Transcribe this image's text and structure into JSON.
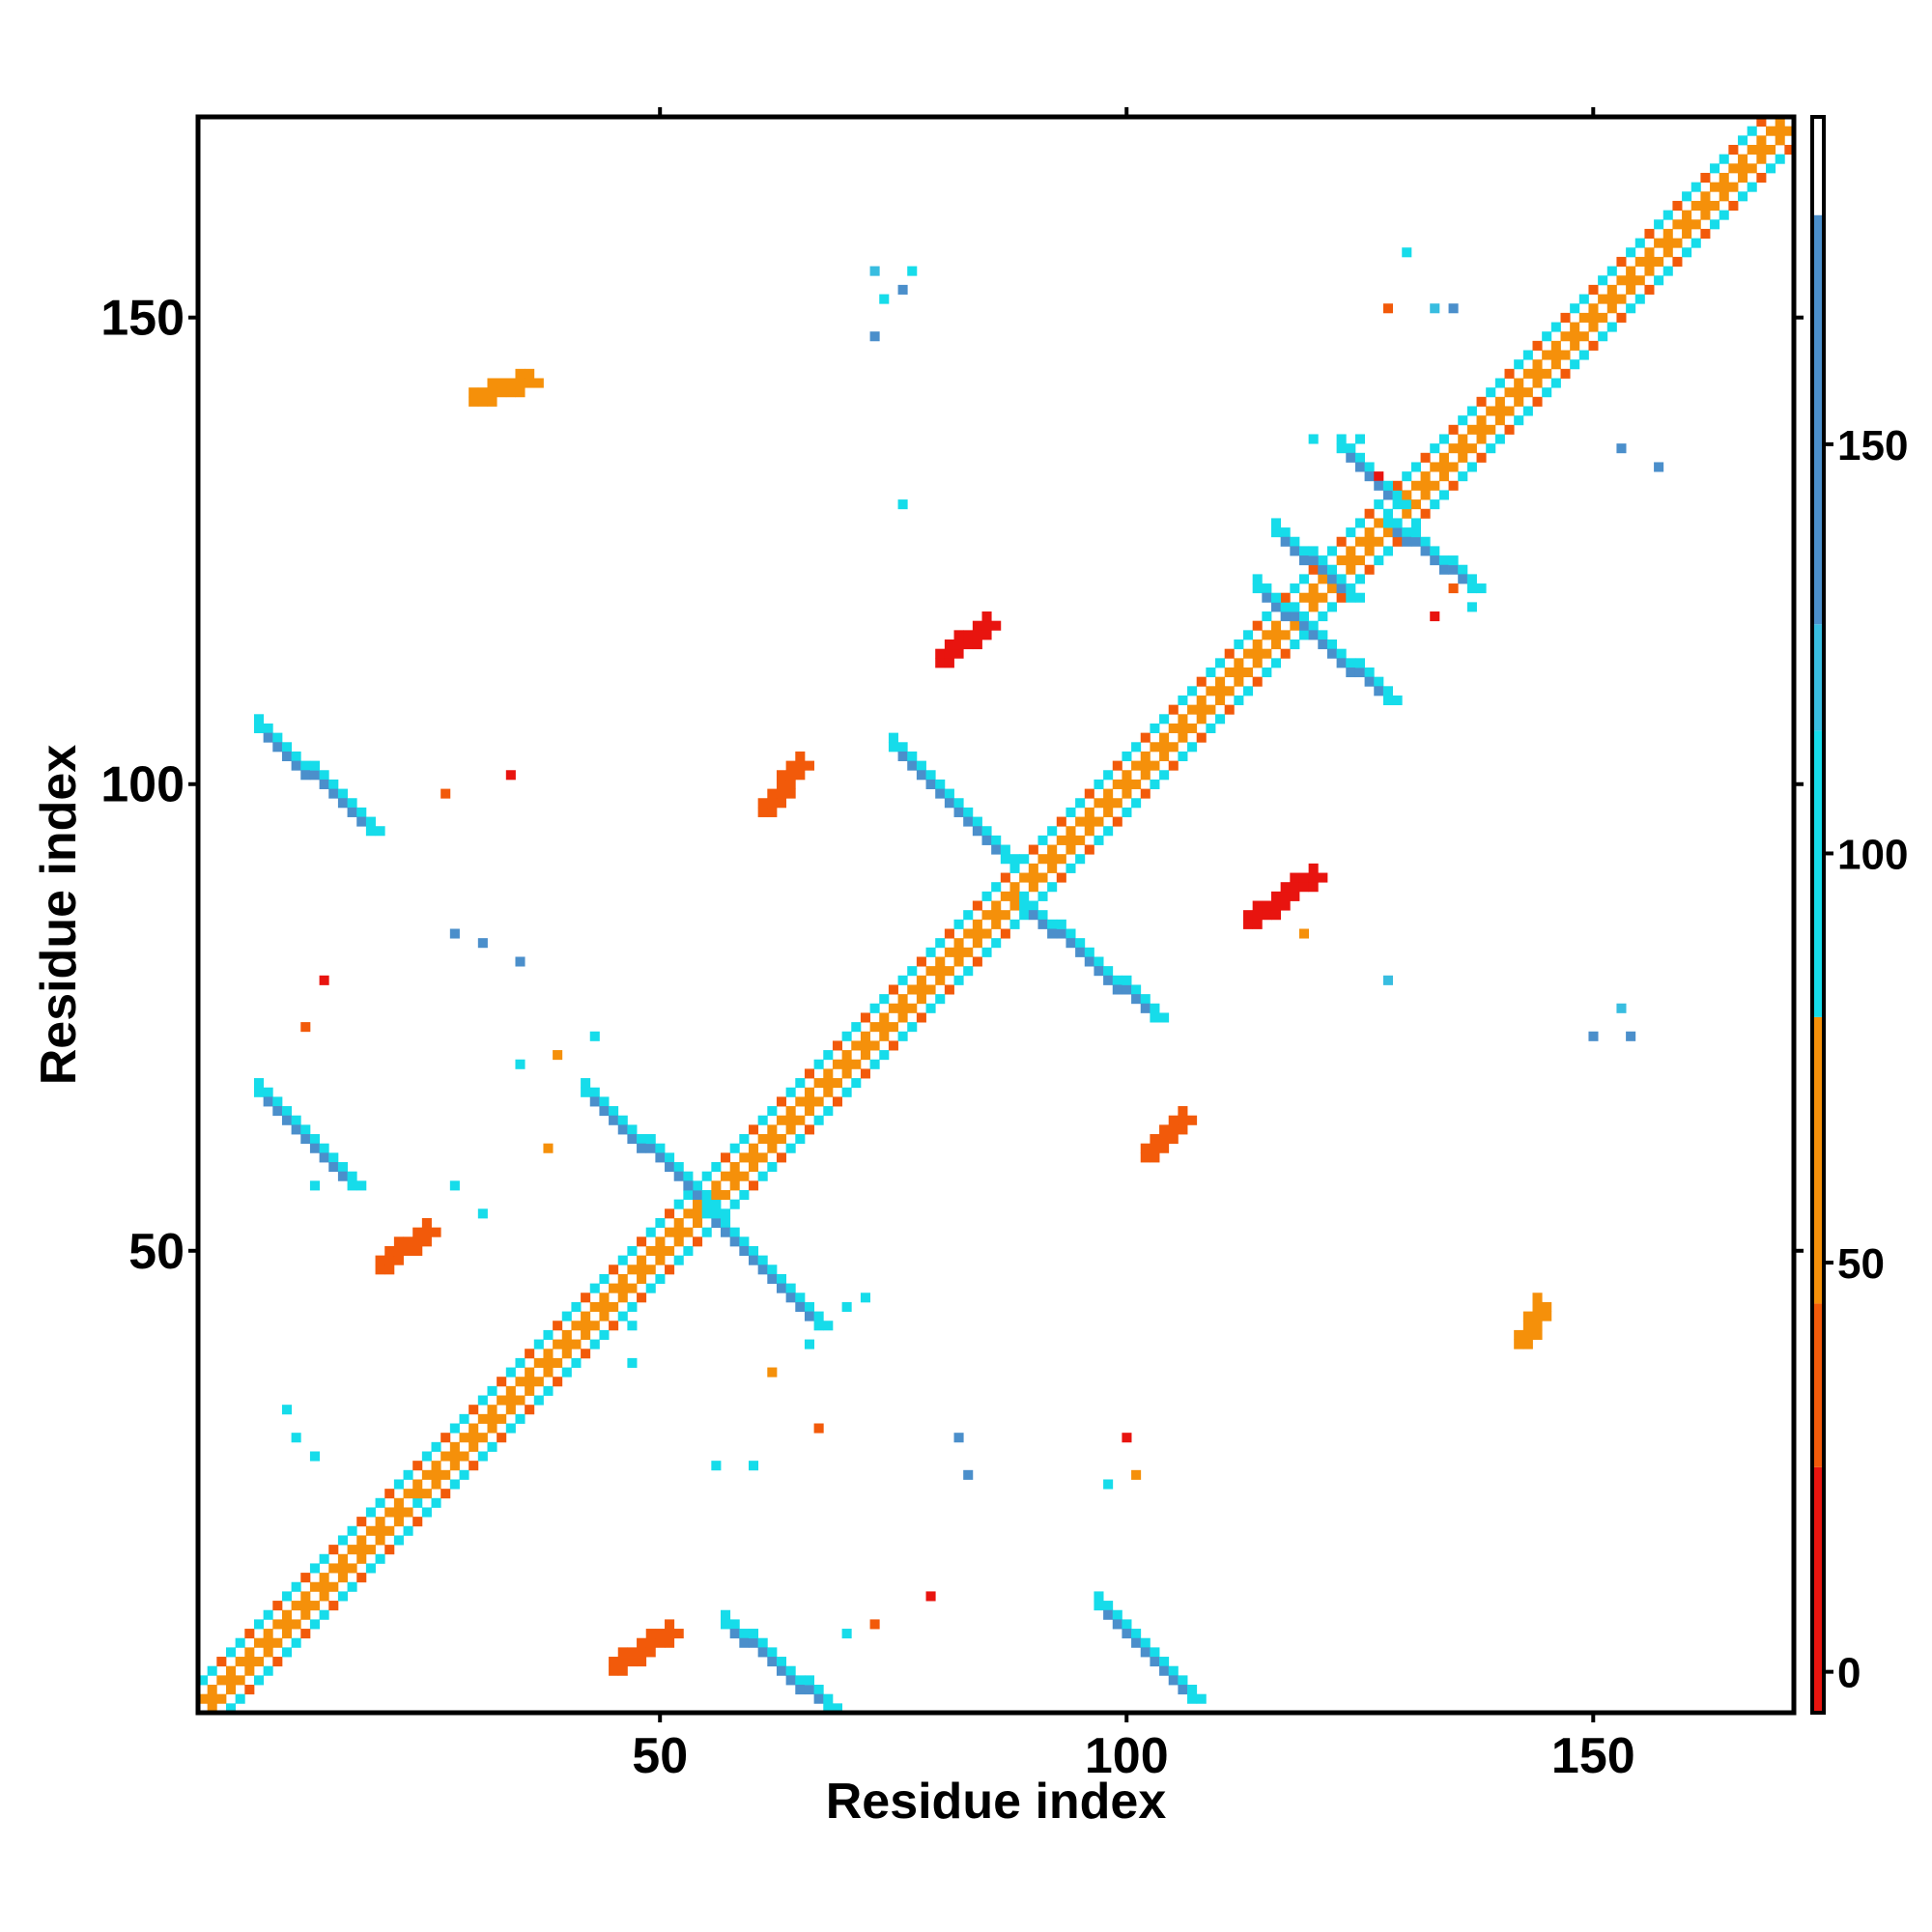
{
  "chart_data": {
    "type": "heatmap",
    "title": "",
    "xlabel": "Residue index",
    "ylabel": "Residue index",
    "xlim": [
      1,
      171
    ],
    "ylim": [
      1,
      171
    ],
    "x_ticks": [
      50,
      100,
      150
    ],
    "y_ticks": [
      50,
      100,
      150
    ],
    "colorbar": {
      "ticks": [
        0,
        50,
        100,
        150
      ],
      "range": [
        -5,
        190
      ],
      "bands": [
        {
          "from": -5,
          "to": 25,
          "color": "#e8140f"
        },
        {
          "from": 25,
          "to": 45,
          "color": "#f25a0a"
        },
        {
          "from": 45,
          "to": 80,
          "color": "#f5900a"
        },
        {
          "from": 80,
          "to": 115,
          "color": "#16dcea"
        },
        {
          "from": 115,
          "to": 128,
          "color": "#38bde0"
        },
        {
          "from": 128,
          "to": 178,
          "color": "#4b8fcb"
        },
        {
          "from": 178,
          "to": 190,
          "color": "#ffffff"
        }
      ]
    },
    "colors": {
      "red": "#e8140f",
      "orange_red": "#f25a0a",
      "orange": "#f5900a",
      "cyan": "#16dcea",
      "light_blue": "#38bde0",
      "steel_blue": "#4b8fcb"
    },
    "diagonal_band": {
      "half_width": 3,
      "pattern": [
        "checker-white",
        "orange",
        "red",
        "cyan"
      ]
    },
    "features": [
      {
        "kind": "antidiag",
        "from": [
          57,
          10
        ],
        "to": [
          68,
          1
        ],
        "value": 150,
        "edge_value": 100
      },
      {
        "kind": "antidiag",
        "from": [
          97,
          12
        ],
        "to": [
          107,
          2
        ],
        "value": 150,
        "edge_value": 100
      },
      {
        "kind": "antidiag",
        "from": [
          42,
          67
        ],
        "to": [
          56,
          54
        ],
        "value": 150,
        "edge_value": 100
      },
      {
        "kind": "antidiag",
        "from": [
          55,
          54
        ],
        "to": [
          67,
          42
        ],
        "value": 150,
        "edge_value": 100
      },
      {
        "kind": "antidiag",
        "from": [
          75,
          104
        ],
        "to": [
          87,
          92
        ],
        "value": 150,
        "edge_value": 100
      },
      {
        "kind": "antidiag",
        "from": [
          89,
          87
        ],
        "to": [
          103,
          75
        ],
        "value": 150,
        "edge_value": 100
      },
      {
        "kind": "antidiag",
        "from": [
          7,
          106
        ],
        "to": [
          19,
          95
        ],
        "value": 150,
        "edge_value": 100
      },
      {
        "kind": "antidiag",
        "from": [
          7,
          67
        ],
        "to": [
          17,
          57
        ],
        "value": 150,
        "edge_value": 100
      },
      {
        "kind": "antidiag",
        "from": [
          116,
          127
        ],
        "to": [
          124,
          120
        ],
        "value": 150,
        "edge_value": 100
      },
      {
        "kind": "antidiag",
        "from": [
          114,
          121
        ],
        "to": [
          128,
          109
        ],
        "value": 150,
        "edge_value": 100
      },
      {
        "kind": "antidiag",
        "from": [
          123,
          136
        ],
        "to": [
          129,
          130
        ],
        "value": 150,
        "edge_value": 100
      },
      {
        "kind": "antidiag",
        "from": [
          128,
          128
        ],
        "to": [
          137,
          121
        ],
        "value": 150,
        "edge_value": 100
      },
      {
        "kind": "diag",
        "from": [
          80,
          113
        ],
        "to": [
          85,
          117
        ],
        "value": 10
      },
      {
        "kind": "diag",
        "from": [
          113,
          85
        ],
        "to": [
          120,
          90
        ],
        "value": 10
      },
      {
        "kind": "diag",
        "from": [
          20,
          48
        ],
        "to": [
          25,
          52
        ],
        "value": 30
      },
      {
        "kind": "diag",
        "from": [
          61,
          97
        ],
        "to": [
          65,
          102
        ],
        "value": 40
      },
      {
        "kind": "diag",
        "from": [
          102,
          60
        ],
        "to": [
          106,
          64
        ],
        "value": 40
      },
      {
        "kind": "diag",
        "from": [
          45,
          5
        ],
        "to": [
          51,
          9
        ],
        "value": 40
      },
      {
        "kind": "diag",
        "from": [
          30,
          141
        ],
        "to": [
          36,
          143
        ],
        "value": 50
      },
      {
        "kind": "diag",
        "from": [
          142,
          40
        ],
        "to": [
          144,
          44
        ],
        "value": 50
      }
    ],
    "scatter_cells": [
      [
        73,
        155,
        120
      ],
      [
        74,
        152,
        100
      ],
      [
        76,
        153,
        140
      ],
      [
        73,
        148,
        150
      ],
      [
        77,
        155,
        100
      ],
      [
        76,
        130,
        110
      ],
      [
        130,
        157,
        110
      ],
      [
        133,
        151,
        120
      ],
      [
        135,
        151,
        130
      ],
      [
        128,
        151,
        40
      ],
      [
        153,
        136,
        140
      ],
      [
        157,
        134,
        150
      ],
      [
        150,
        73,
        130
      ],
      [
        154,
        73,
        140
      ],
      [
        153,
        76,
        120
      ],
      [
        128,
        79,
        120
      ],
      [
        28,
        84,
        140
      ],
      [
        31,
        83,
        150
      ],
      [
        35,
        81,
        130
      ],
      [
        35,
        70,
        100
      ],
      [
        39,
        71,
        60
      ],
      [
        43,
        73,
        90
      ],
      [
        31,
        54,
        100
      ],
      [
        28,
        57,
        90
      ],
      [
        38,
        61,
        60
      ],
      [
        60,
        27,
        80
      ],
      [
        56,
        27,
        100
      ],
      [
        67,
        31,
        40
      ],
      [
        82,
        30,
        150
      ],
      [
        83,
        26,
        130
      ],
      [
        100,
        30,
        10
      ],
      [
        101,
        26,
        60
      ],
      [
        98,
        25,
        100
      ],
      [
        79,
        13,
        10
      ],
      [
        73,
        10,
        40
      ],
      [
        70,
        9,
        90
      ],
      [
        72,
        45,
        100
      ],
      [
        70,
        44,
        100
      ],
      [
        66,
        40,
        80
      ],
      [
        62,
        37,
        60
      ],
      [
        34,
        101,
        10
      ],
      [
        27,
        99,
        30
      ],
      [
        14,
        79,
        10
      ],
      [
        12,
        74,
        40
      ],
      [
        13,
        57,
        100
      ],
      [
        47,
        42,
        100
      ],
      [
        47,
        38,
        100
      ],
      [
        24,
        23,
        100
      ],
      [
        135,
        121,
        30
      ],
      [
        133,
        118,
        10
      ],
      [
        137,
        119,
        100
      ],
      [
        119,
        84,
        60
      ],
      [
        10,
        33,
        100
      ],
      [
        11,
        30,
        100
      ],
      [
        13,
        28,
        110
      ],
      [
        127,
        133,
        10
      ],
      [
        125,
        137,
        80
      ],
      [
        120,
        137,
        100
      ]
    ]
  }
}
